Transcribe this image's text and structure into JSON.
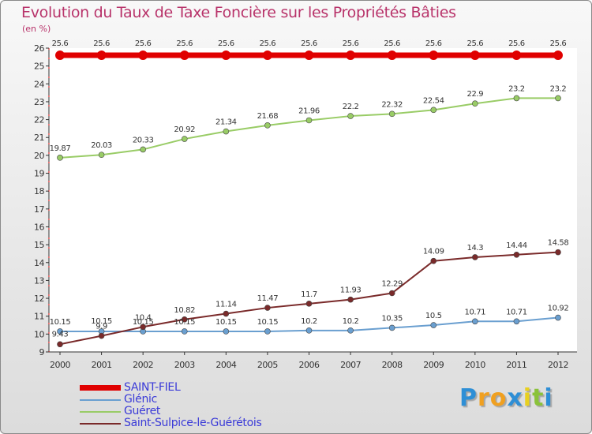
{
  "title": "Evolution du Taux de Taxe Foncière sur les Propriétés Bâties",
  "unit_label": "(en %)",
  "brand": {
    "letters": [
      "P",
      "r",
      "o",
      "x",
      "i",
      "t",
      "i"
    ],
    "colors": [
      "#2e8fd6",
      "#f0a020",
      "#f0a020",
      "#2e8fd6",
      "#e8d020",
      "#8ac23a",
      "#2e8fd6"
    ]
  },
  "chart_data": {
    "type": "line",
    "title": "Evolution du Taux de Taxe Foncière sur les Propriétés Bâties",
    "ylabel": "(en %)",
    "xlabel": "",
    "ylim": [
      9,
      26
    ],
    "yticks": [
      "9",
      "10",
      "11",
      "12",
      "13",
      "14",
      "15",
      "16",
      "17",
      "18",
      "19",
      "20",
      "21",
      "22",
      "23",
      "24",
      "25",
      "26"
    ],
    "categories": [
      "2000",
      "2001",
      "2002",
      "2003",
      "2004",
      "2005",
      "2006",
      "2007",
      "2008",
      "2009",
      "2010",
      "2011",
      "2012"
    ],
    "grid": false,
    "series": [
      {
        "name": "SAINT-FIEL",
        "color": "#e00000",
        "values": [
          25.6,
          25.6,
          25.6,
          25.6,
          25.6,
          25.6,
          25.6,
          25.6,
          25.6,
          25.6,
          25.6,
          25.6,
          25.6
        ],
        "labels": [
          "25.6",
          "25.6",
          "25.6",
          "25.6",
          "25.6",
          "25.6",
          "25.6",
          "25.6",
          "25.6",
          "25.6",
          "25.6",
          "25.6",
          "25.6"
        ]
      },
      {
        "name": "Glénic",
        "color": "#6a9fd0",
        "values": [
          10.15,
          10.15,
          10.15,
          10.15,
          10.15,
          10.15,
          10.2,
          10.2,
          10.35,
          10.5,
          10.71,
          10.71,
          10.92
        ],
        "labels": [
          "10.15",
          "10.15",
          "10.15",
          "10.15",
          "10.15",
          "10.15",
          "10.2",
          "10.2",
          "10.35",
          "10.5",
          "10.71",
          "10.71",
          "10.92"
        ]
      },
      {
        "name": "Guéret",
        "color": "#99cc66",
        "values": [
          19.87,
          20.03,
          20.33,
          20.92,
          21.34,
          21.68,
          21.96,
          22.2,
          22.32,
          22.54,
          22.9,
          23.2,
          23.2
        ],
        "labels": [
          "19.87",
          "20.03",
          "20.33",
          "20.92",
          "21.34",
          "21.68",
          "21.96",
          "22.2",
          "22.32",
          "22.54",
          "22.9",
          "23.2",
          "23.2"
        ]
      },
      {
        "name": "Saint-Sulpice-le-Guérétois",
        "color": "#7a2a2a",
        "values": [
          9.43,
          9.9,
          10.4,
          10.82,
          11.14,
          11.47,
          11.7,
          11.93,
          12.29,
          14.09,
          14.3,
          14.44,
          14.58
        ],
        "labels": [
          "9.43",
          "9.9",
          "10.4",
          "10.82",
          "11.14",
          "11.47",
          "11.7",
          "11.93",
          "12.29",
          "14.09",
          "14.3",
          "14.44",
          "14.58"
        ]
      }
    ],
    "legend_position": "bottom-left"
  }
}
